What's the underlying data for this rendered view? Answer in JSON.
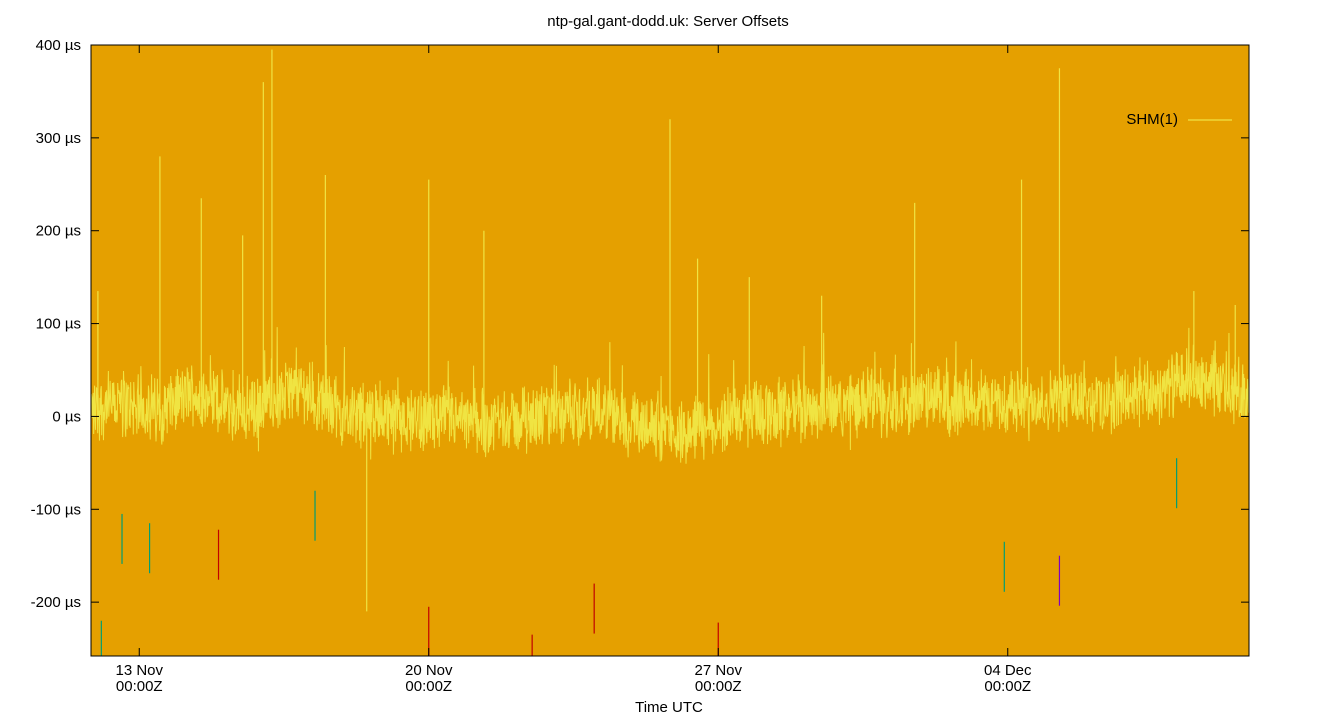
{
  "chart_data": {
    "type": "line",
    "title": "ntp-gal.gant-dodd.uk: Server Offsets",
    "xlabel": "Time UTC",
    "ylabel": "",
    "ylim": [
      -258,
      400
    ],
    "y_unit": "µs",
    "y_ticks": [
      {
        "value": 400,
        "label": "400 µs"
      },
      {
        "value": 300,
        "label": "300 µs"
      },
      {
        "value": 200,
        "label": "200 µs"
      },
      {
        "value": 100,
        "label": "100 µs"
      },
      {
        "value": 0,
        "label": "0 µs"
      },
      {
        "value": -100,
        "label": "-100 µs"
      },
      {
        "value": -200,
        "label": "-200 µs"
      }
    ],
    "xlim": [
      "2023-11-11T20:00Z",
      "2023-12-09T20:00Z"
    ],
    "x_ticks": [
      {
        "value": "2023-11-13T00:00Z",
        "line1": "13 Nov",
        "line2": "00:00Z"
      },
      {
        "value": "2023-11-20T00:00Z",
        "line1": "20 Nov",
        "line2": "00:00Z"
      },
      {
        "value": "2023-11-27T00:00Z",
        "line1": "27 Nov",
        "line2": "00:00Z"
      },
      {
        "value": "2023-12-04T00:00Z",
        "line1": "04 Dec",
        "line2": "00:00Z"
      }
    ],
    "legend_position": "top-right",
    "grid": false,
    "background_color": "#e5a000",
    "series": [
      {
        "name": "SHM(1)",
        "color": "#f0e442",
        "description_of_trace": "dense noise band roughly -30 to +50 µs around 0 with occasional spikes",
        "points": [
          {
            "x": "2023-11-11T20:00Z",
            "y": 10
          },
          {
            "x": "2023-11-12T18:00Z",
            "y": 15
          },
          {
            "x": "2023-11-13T10:00Z",
            "y": 5
          },
          {
            "x": "2023-11-14T06:00Z",
            "y": 25
          },
          {
            "x": "2023-11-15T12:00Z",
            "y": 5
          },
          {
            "x": "2023-11-16T20:00Z",
            "y": 30
          },
          {
            "x": "2023-11-17T20:00Z",
            "y": 5
          },
          {
            "x": "2023-11-19T00:00Z",
            "y": 0
          },
          {
            "x": "2023-11-20T12:00Z",
            "y": -5
          },
          {
            "x": "2023-11-21T12:00Z",
            "y": -8
          },
          {
            "x": "2023-11-22T18:00Z",
            "y": 0
          },
          {
            "x": "2023-11-24T00:00Z",
            "y": 5
          },
          {
            "x": "2023-11-25T00:00Z",
            "y": -5
          },
          {
            "x": "2023-11-26T00:00Z",
            "y": -15
          },
          {
            "x": "2023-11-27T00:00Z",
            "y": -5
          },
          {
            "x": "2023-11-28T00:00Z",
            "y": 5
          },
          {
            "x": "2023-11-29T12:00Z",
            "y": 10
          },
          {
            "x": "2023-12-01T00:00Z",
            "y": 15
          },
          {
            "x": "2023-12-02T12:00Z",
            "y": 15
          },
          {
            "x": "2023-12-04T00:00Z",
            "y": 15
          },
          {
            "x": "2023-12-05T12:00Z",
            "y": 20
          },
          {
            "x": "2023-12-06T12:00Z",
            "y": 15
          },
          {
            "x": "2023-12-07T12:00Z",
            "y": 25
          },
          {
            "x": "2023-12-08T12:00Z",
            "y": 40
          },
          {
            "x": "2023-12-09T12:00Z",
            "y": 25
          }
        ],
        "spikes": [
          {
            "x": "2023-11-12T00:00Z",
            "y": 135
          },
          {
            "x": "2023-11-13T12:00Z",
            "y": 280
          },
          {
            "x": "2023-11-14T12:00Z",
            "y": 235
          },
          {
            "x": "2023-11-15T12:00Z",
            "y": 195
          },
          {
            "x": "2023-11-16T00:00Z",
            "y": 360
          },
          {
            "x": "2023-11-16T05:00Z",
            "y": 395
          },
          {
            "x": "2023-11-17T12:00Z",
            "y": 260
          },
          {
            "x": "2023-11-18T12:00Z",
            "y": -210
          },
          {
            "x": "2023-11-20T00:00Z",
            "y": 255
          },
          {
            "x": "2023-11-21T08:00Z",
            "y": 200
          },
          {
            "x": "2023-11-25T20:00Z",
            "y": 320
          },
          {
            "x": "2023-11-26T12:00Z",
            "y": 170
          },
          {
            "x": "2023-11-27T18:00Z",
            "y": 150
          },
          {
            "x": "2023-11-29T12:00Z",
            "y": 130
          },
          {
            "x": "2023-12-01T18:00Z",
            "y": 230
          },
          {
            "x": "2023-12-04T08:00Z",
            "y": 255
          },
          {
            "x": "2023-12-05T06:00Z",
            "y": 375
          },
          {
            "x": "2023-12-08T12:00Z",
            "y": 135
          },
          {
            "x": "2023-12-09T12:00Z",
            "y": 120
          }
        ]
      }
    ],
    "outlier_markers": [
      {
        "x": "2023-11-12T02:00Z",
        "y": -220,
        "color": "#009e73"
      },
      {
        "x": "2023-11-12T14:00Z",
        "y": -105,
        "color": "#009e73"
      },
      {
        "x": "2023-11-13T06:00Z",
        "y": -115,
        "color": "#009e73"
      },
      {
        "x": "2023-11-14T22:00Z",
        "y": -122,
        "color": "#c00000"
      },
      {
        "x": "2023-11-17T06:00Z",
        "y": -80,
        "color": "#009e73"
      },
      {
        "x": "2023-11-20T00:00Z",
        "y": -205,
        "color": "#c00000"
      },
      {
        "x": "2023-11-22T12:00Z",
        "y": -235,
        "color": "#c00000"
      },
      {
        "x": "2023-11-24T00:00Z",
        "y": -180,
        "color": "#c00000"
      },
      {
        "x": "2023-11-27T00:00Z",
        "y": -222,
        "color": "#c00000"
      },
      {
        "x": "2023-12-03T22:00Z",
        "y": -135,
        "color": "#009e73"
      },
      {
        "x": "2023-12-05T06:00Z",
        "y": -150,
        "color": "#8000c0"
      },
      {
        "x": "2023-12-08T02:00Z",
        "y": -45,
        "color": "#009e73"
      }
    ]
  }
}
